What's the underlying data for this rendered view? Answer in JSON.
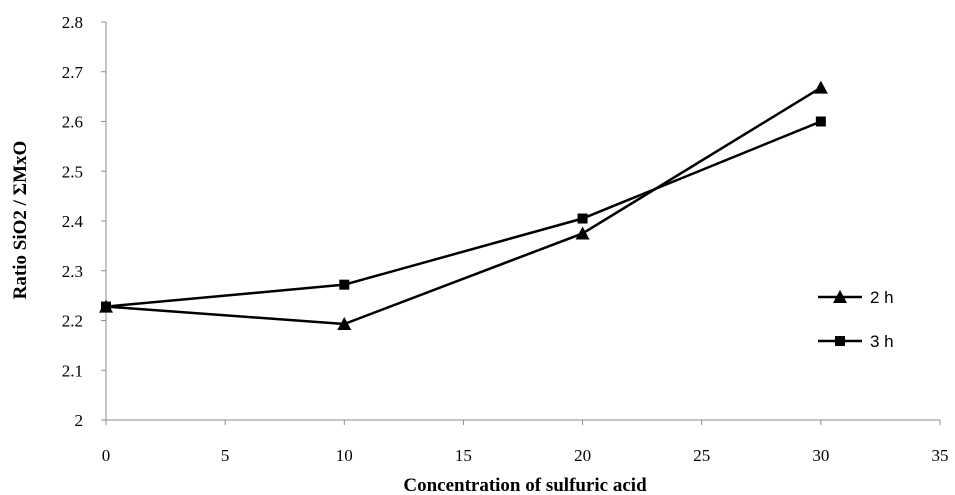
{
  "chart_data": {
    "type": "line",
    "title": "",
    "xlabel": "Concentration of sulfuric acid",
    "ylabel": "Ratio SiO2 / ΣMxO",
    "xlim": [
      0,
      35
    ],
    "ylim": [
      2,
      2.8
    ],
    "xticks": [
      0,
      5,
      10,
      15,
      20,
      25,
      30,
      35
    ],
    "yticks": [
      2,
      2.1,
      2.2,
      2.3,
      2.4,
      2.5,
      2.6,
      2.7,
      2.8
    ],
    "ytick_labels": [
      "2",
      "2.1",
      "2.2",
      "2.3",
      "2.4",
      "2.5",
      "2.6",
      "2.7",
      "2.8"
    ],
    "grid": false,
    "legend_position": "right",
    "series": [
      {
        "name": "2 h",
        "marker": "triangle",
        "color": "#000000",
        "x": [
          0,
          10,
          20,
          30
        ],
        "y": [
          2.228,
          2.193,
          2.375,
          2.668
        ]
      },
      {
        "name": "3 h",
        "marker": "square",
        "color": "#000000",
        "x": [
          0,
          10,
          20,
          30
        ],
        "y": [
          2.228,
          2.272,
          2.405,
          2.6
        ]
      }
    ]
  }
}
